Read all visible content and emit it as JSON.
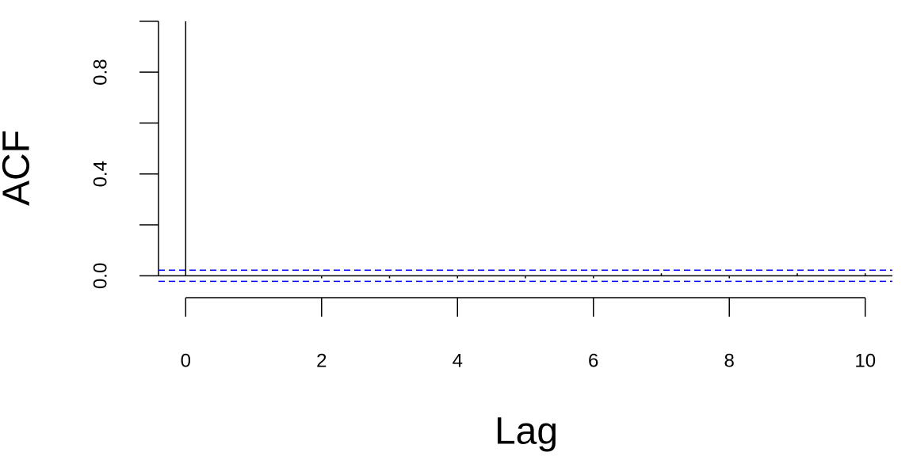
{
  "chart_data": {
    "type": "acf",
    "xlabel": "Lag",
    "ylabel": "ACF",
    "x": [
      0,
      1,
      2,
      3,
      4,
      5,
      6,
      7,
      8,
      9,
      10
    ],
    "values": [
      1,
      0,
      -0.01,
      -0.01,
      -0.01,
      -0.01,
      -0.01,
      0.01,
      -0.01,
      0.01,
      0.01
    ],
    "color": "#000000",
    "ci": 0.022,
    "ci_color": "#0000ff",
    "xlim": [
      -0.4,
      10.4
    ],
    "ylim": [
      -0.086,
      1.043
    ],
    "xticks": [
      0,
      2,
      4,
      6,
      8,
      10
    ],
    "yticks": [
      {
        "value": 0,
        "label": "0.0"
      },
      {
        "value": 0.4,
        "label": "0.4"
      },
      {
        "value": 0.8,
        "label": "0.8"
      }
    ],
    "yminor_ticks": [
      0.2,
      0.6,
      1.0
    ]
  }
}
